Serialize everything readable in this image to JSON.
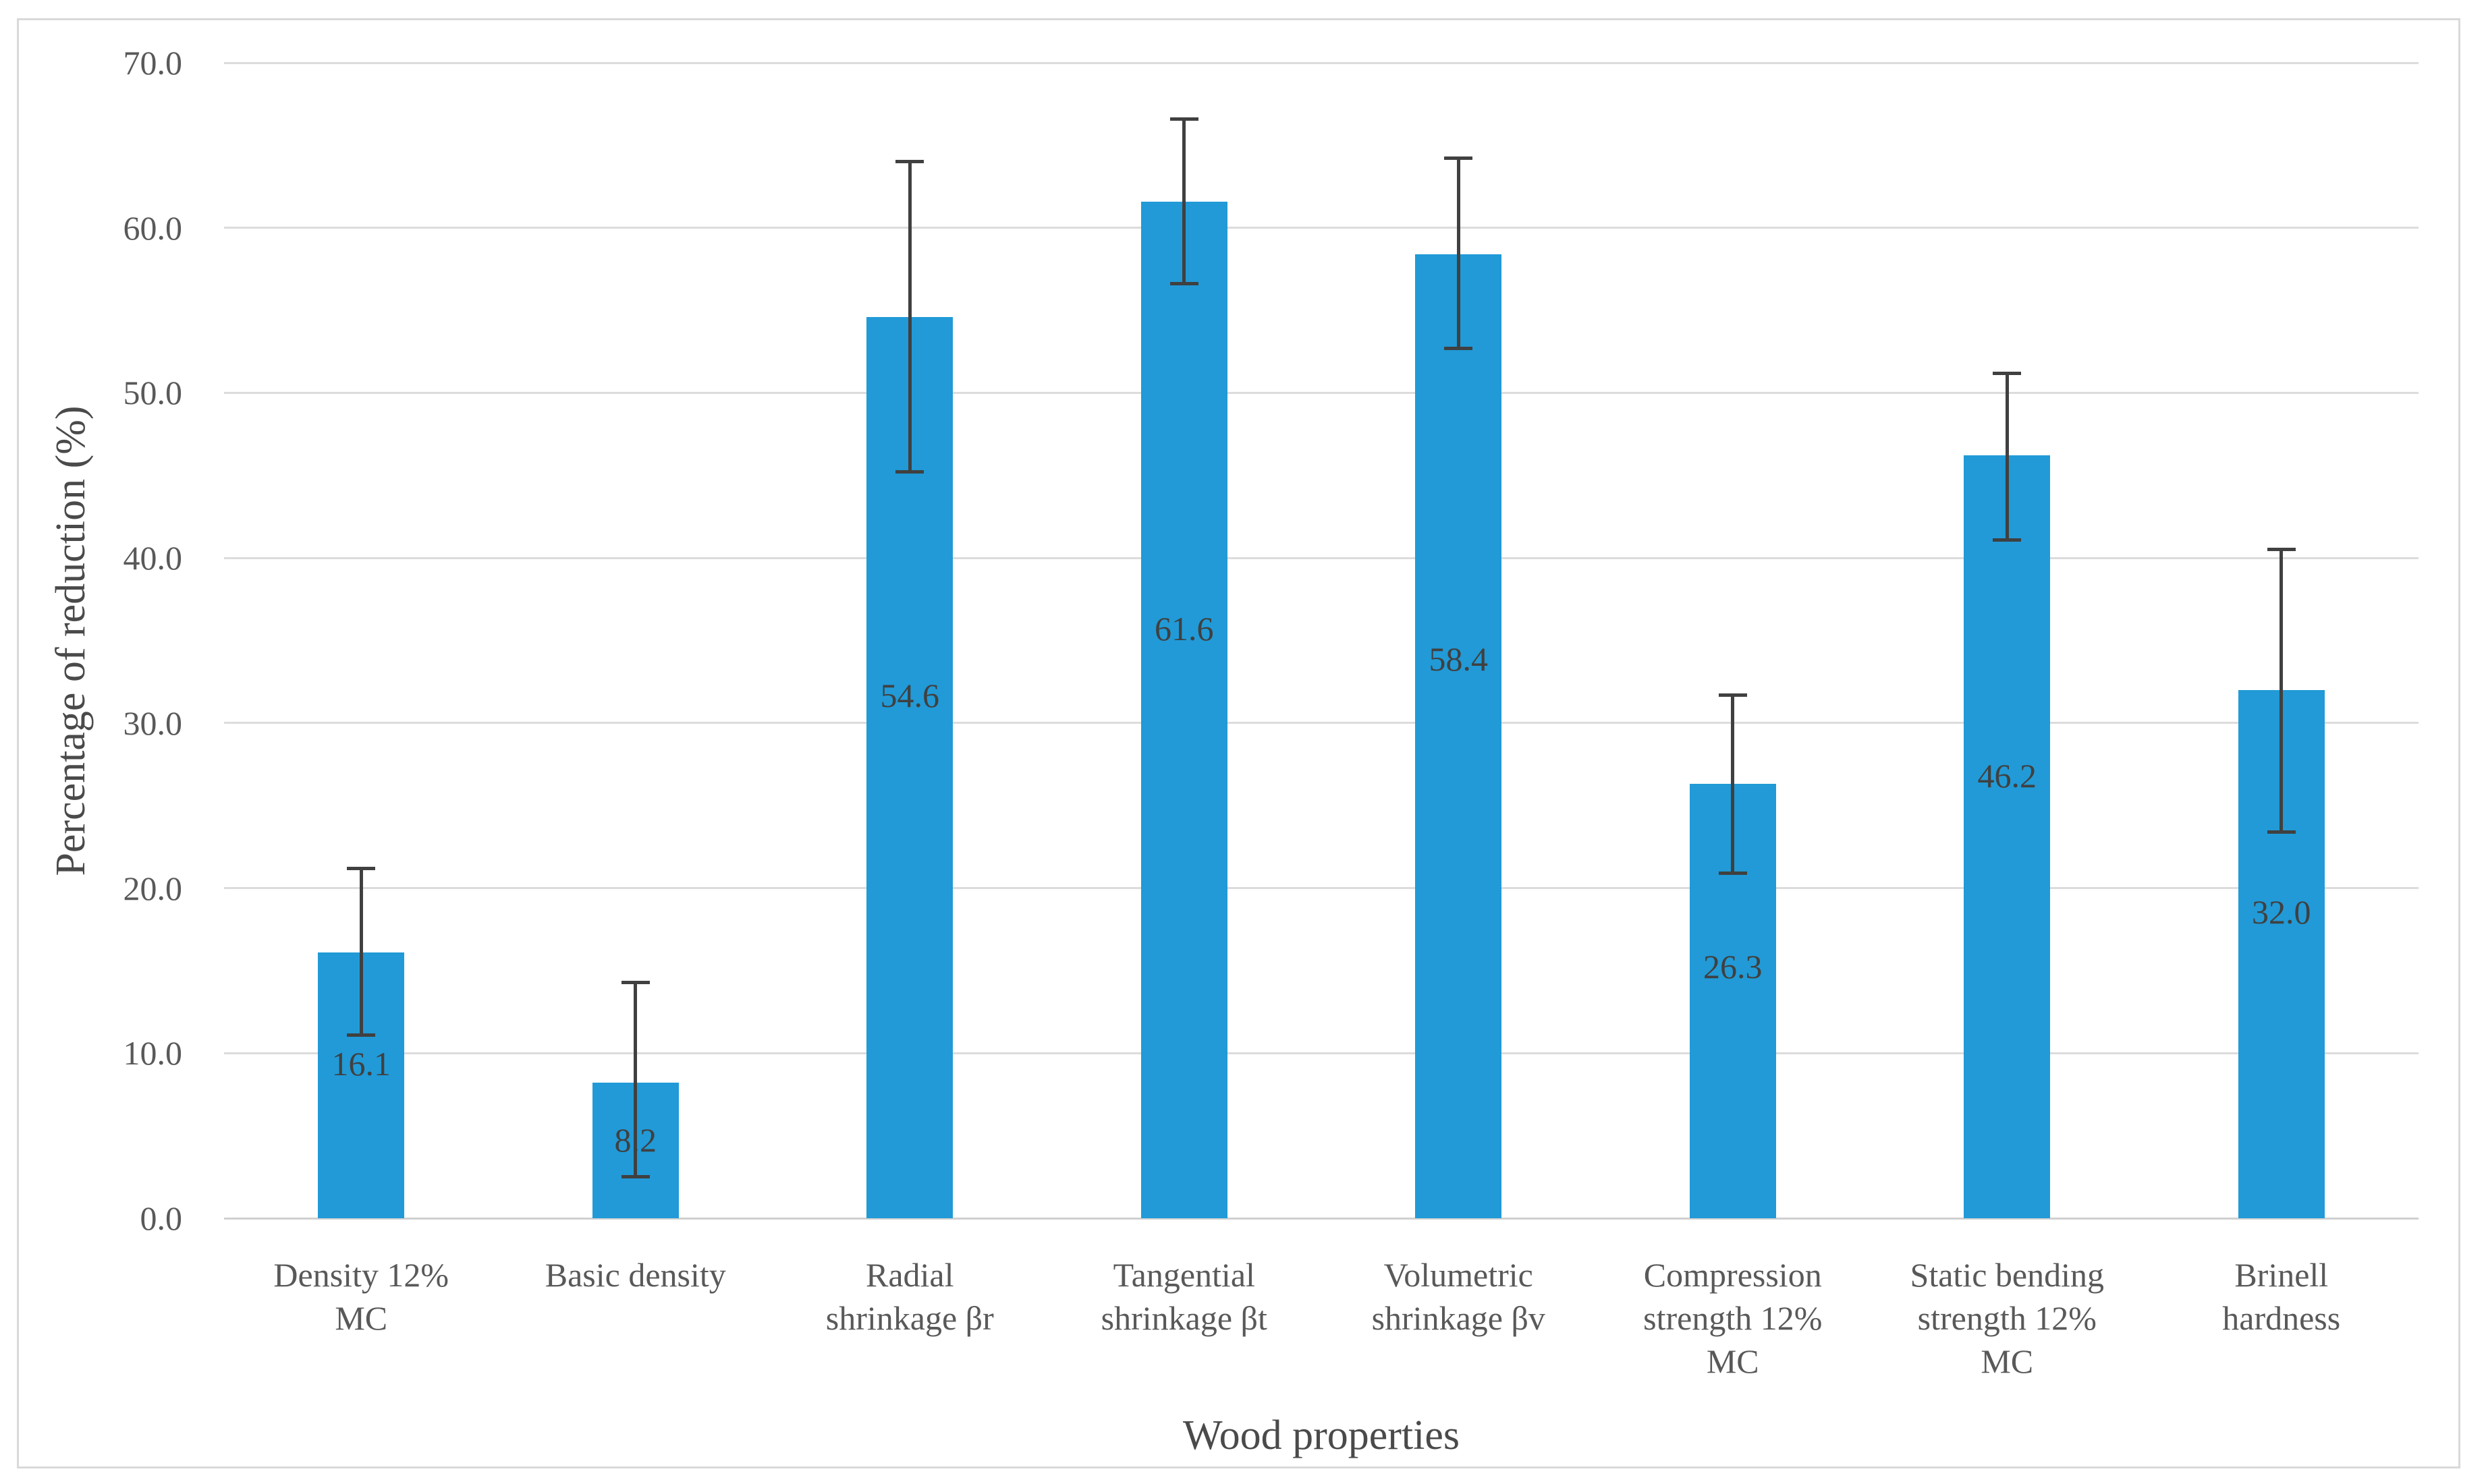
{
  "chart_data": {
    "type": "bar",
    "title": "",
    "xlabel": "Wood properties",
    "ylabel": "Percentage of reduction (%)",
    "ylim": [
      0,
      70
    ],
    "ytick_step": 10,
    "ytick_labels": [
      "0.0",
      "10.0",
      "20.0",
      "30.0",
      "40.0",
      "50.0",
      "60.0",
      "70.0"
    ],
    "grid": "horizontal-gridlines",
    "legend": "none",
    "categories": [
      "Density 12% MC",
      "Basic density",
      "Radial shrinkage βr",
      "Tangential shrinkage βt",
      "Volumetric shrinkage βv",
      "Compression strength 12% MC",
      "Static bending strength 12% MC",
      "Brinell hardness"
    ],
    "category_lines": [
      [
        "Density 12%",
        "MC"
      ],
      [
        "Basic density"
      ],
      [
        "Radial",
        "shrinkage βr"
      ],
      [
        "Tangential",
        "shrinkage βt"
      ],
      [
        "Volumetric",
        "shrinkage βv"
      ],
      [
        "Compression",
        "strength 12%",
        "MC"
      ],
      [
        "Static bending",
        "strength 12%",
        "MC"
      ],
      [
        "Brinell",
        "hardness"
      ]
    ],
    "values": [
      16.1,
      8.2,
      54.6,
      61.6,
      58.4,
      26.3,
      46.2,
      32.0
    ],
    "data_labels": [
      "16.1",
      "8.2",
      "54.6",
      "61.6",
      "58.4",
      "26.3",
      "46.2",
      "32.0"
    ],
    "error_bar_top": [
      21.2,
      14.3,
      64.0,
      66.6,
      64.2,
      31.7,
      51.2,
      40.5
    ],
    "error_bar_bottom": [
      11.1,
      2.5,
      45.2,
      56.6,
      52.7,
      20.9,
      41.1,
      23.4
    ],
    "colors": {
      "bar_fill": "#219AD7",
      "error_bar": "#404040",
      "data_label_text": "#404040",
      "axis_text": "#595959",
      "axis_title_text": "#4A4A4A",
      "gridline": "#DCDCDC",
      "baseline": "#D0D0D0",
      "frame_border": "#D9D9D9",
      "background": "#FFFFFF"
    }
  }
}
